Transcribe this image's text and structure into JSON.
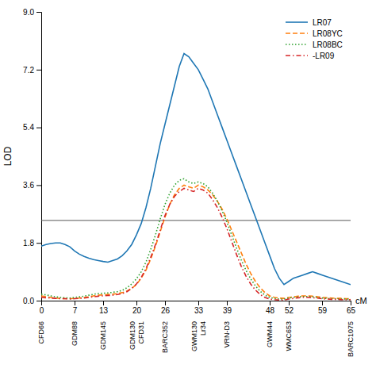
{
  "chart_data": {
    "type": "line",
    "y_label": "LOD",
    "x_label": "cM",
    "xlim": [
      0,
      65
    ],
    "ylim": [
      0,
      9
    ],
    "xticks": [
      0,
      7,
      13,
      20,
      26,
      33,
      39,
      48,
      52,
      59,
      65
    ],
    "yticks": [
      {
        "value": 0,
        "label": "0.0"
      },
      1.8,
      3.6,
      5.4,
      7.2,
      {
        "value": 9,
        "label": "9.0"
      }
    ],
    "threshold": 2.5,
    "legend": "upper right",
    "annotations": [
      {
        "x": 0,
        "text": "CFD66"
      },
      {
        "x": 7,
        "text": "GDM88"
      },
      {
        "x": 13,
        "text": "GDM145"
      },
      {
        "x": 20,
        "text": "GDM130"
      },
      {
        "x": 20,
        "text": "CFD31"
      },
      {
        "x": 26,
        "text": "BARC352"
      },
      {
        "x": 33,
        "text": "GWM130"
      },
      {
        "x": 33,
        "text": "Lr34"
      },
      {
        "x": 39,
        "text": "VRN-D3"
      },
      {
        "x": 48,
        "text": "GWM44"
      },
      {
        "x": 52,
        "text": "WMC653"
      },
      {
        "x": 65,
        "text": "BARC1075"
      }
    ],
    "x": [
      0,
      1,
      2,
      3,
      4,
      5,
      6,
      7,
      8,
      9,
      10,
      11,
      12,
      13,
      14,
      15,
      16,
      17,
      18,
      19,
      20,
      21,
      22,
      23,
      24,
      25,
      26,
      27,
      28,
      29,
      30,
      31,
      32,
      33,
      34,
      35,
      36,
      37,
      38,
      39,
      40,
      41,
      42,
      43,
      44,
      45,
      46,
      47,
      48,
      49,
      50,
      51,
      52,
      53,
      54,
      55,
      56,
      57,
      58,
      59,
      60,
      61,
      62,
      63,
      64,
      65
    ],
    "series": [
      {
        "name": "LR07",
        "line_style": "solid",
        "values": [
          1.7,
          1.75,
          1.78,
          1.8,
          1.8,
          1.75,
          1.68,
          1.55,
          1.45,
          1.38,
          1.32,
          1.28,
          1.25,
          1.22,
          1.2,
          1.25,
          1.3,
          1.4,
          1.55,
          1.75,
          2.05,
          2.4,
          2.9,
          3.5,
          4.2,
          4.9,
          5.5,
          6.1,
          6.7,
          7.3,
          7.7,
          7.6,
          7.4,
          7.2,
          6.9,
          6.6,
          6.2,
          5.8,
          5.4,
          5.0,
          4.6,
          4.2,
          3.8,
          3.4,
          3.0,
          2.6,
          2.2,
          1.8,
          1.4,
          1.0,
          0.7,
          0.5,
          0.6,
          0.7,
          0.75,
          0.8,
          0.85,
          0.9,
          0.85,
          0.8,
          0.75,
          0.7,
          0.65,
          0.6,
          0.55,
          0.5
        ]
      },
      {
        "name": "LR08YC",
        "line_style": "dashed",
        "values": [
          0.15,
          0.12,
          0.1,
          0.08,
          0.07,
          0.06,
          0.06,
          0.07,
          0.08,
          0.1,
          0.12,
          0.15,
          0.17,
          0.18,
          0.19,
          0.2,
          0.22,
          0.25,
          0.3,
          0.38,
          0.5,
          0.7,
          0.95,
          1.3,
          1.7,
          2.15,
          2.6,
          3.0,
          3.3,
          3.5,
          3.6,
          3.55,
          3.5,
          3.6,
          3.55,
          3.45,
          3.3,
          3.1,
          2.85,
          2.55,
          2.2,
          1.85,
          1.5,
          1.15,
          0.85,
          0.6,
          0.4,
          0.25,
          0.15,
          0.1,
          0.08,
          0.07,
          0.1,
          0.12,
          0.14,
          0.15,
          0.15,
          0.14,
          0.12,
          0.1,
          0.09,
          0.08,
          0.07,
          0.07,
          0.06,
          0.06
        ]
      },
      {
        "name": "LR08BC",
        "line_style": "dotted",
        "values": [
          0.2,
          0.18,
          0.15,
          0.12,
          0.1,
          0.09,
          0.08,
          0.1,
          0.12,
          0.14,
          0.17,
          0.2,
          0.22,
          0.23,
          0.24,
          0.26,
          0.28,
          0.32,
          0.4,
          0.52,
          0.68,
          0.9,
          1.2,
          1.6,
          2.05,
          2.55,
          3.0,
          3.35,
          3.6,
          3.75,
          3.8,
          3.7,
          3.65,
          3.7,
          3.65,
          3.55,
          3.35,
          3.1,
          2.8,
          2.45,
          2.05,
          1.65,
          1.28,
          0.95,
          0.68,
          0.46,
          0.29,
          0.17,
          0.1,
          0.07,
          0.05,
          0.05,
          0.08,
          0.1,
          0.12,
          0.13,
          0.13,
          0.12,
          0.1,
          0.08,
          0.07,
          0.06,
          0.06,
          0.05,
          0.05,
          0.04
        ]
      },
      {
        "name": "-LR09",
        "line_style": "dashdot",
        "values": [
          0.1,
          0.09,
          0.08,
          0.07,
          0.06,
          0.06,
          0.05,
          0.06,
          0.07,
          0.08,
          0.1,
          0.12,
          0.14,
          0.15,
          0.16,
          0.17,
          0.19,
          0.22,
          0.28,
          0.38,
          0.52,
          0.72,
          1.0,
          1.35,
          1.75,
          2.2,
          2.65,
          3.0,
          3.25,
          3.4,
          3.5,
          3.45,
          3.4,
          3.5,
          3.45,
          3.35,
          3.15,
          2.9,
          2.6,
          2.25,
          1.85,
          1.45,
          1.08,
          0.77,
          0.52,
          0.33,
          0.19,
          0.1,
          0.05,
          0.03,
          0.02,
          0.02,
          0.05,
          0.07,
          0.09,
          0.1,
          0.1,
          0.09,
          0.08,
          0.06,
          0.05,
          0.04,
          0.04,
          0.03,
          0.03,
          0.03
        ]
      }
    ]
  }
}
